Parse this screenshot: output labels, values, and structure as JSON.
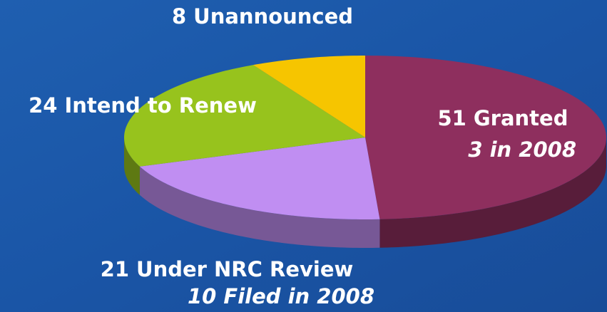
{
  "chart_data": {
    "type": "pie3d",
    "categories": [
      "Granted",
      "Under NRC Review",
      "Intend to Renew",
      "Unannounced"
    ],
    "values": [
      51,
      21,
      24,
      8
    ],
    "colors": [
      "#8e2f5e",
      "#c08ef2",
      "#97c31d",
      "#f6c500"
    ],
    "annotations": [
      {
        "text": "3 in 2008",
        "for": "Granted"
      },
      {
        "text": "10 Filed in 2008",
        "for": "Under NRC Review"
      }
    ]
  }
}
